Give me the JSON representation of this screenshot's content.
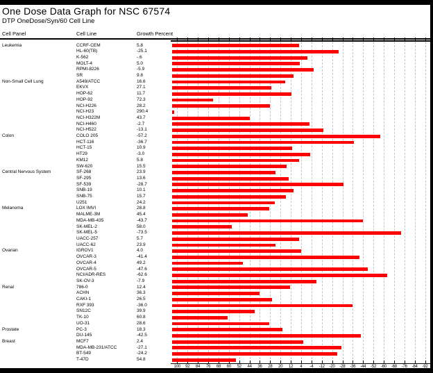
{
  "page": {
    "title": "One Dose Data Graph for NSC 67574",
    "subtitle": "DTP OneDose/Syn/60 Cell Line"
  },
  "table": {
    "columns": {
      "panel": "Cell Panel",
      "cell_line": "Cell Line",
      "growth": "Growth Percent"
    }
  },
  "colors": {
    "bar": "#ff0000",
    "grid": "#c4c4c4",
    "frame": "#000000",
    "background": "#ffffff"
  },
  "chart_data": {
    "type": "bar",
    "orientation": "horizontal",
    "title": "One Dose Data Graph for NSC 67574",
    "xlabel": "Growth Percent",
    "axis_ticks": [
      100,
      92,
      84,
      76,
      68,
      60,
      52,
      44,
      36,
      28,
      20,
      12,
      4,
      -4,
      -12,
      -20,
      -28,
      -36,
      -44,
      -52,
      -60,
      -68,
      -76,
      -84,
      -92
    ],
    "axis_domain": [
      104,
      -96
    ],
    "grid": "dashed-vertical",
    "bars_start_at": 104,
    "panels": [
      {
        "name": "Leukemia",
        "lines": [
          {
            "cell_line": "CCRF-CEM",
            "growth_percent": "5.8"
          },
          {
            "cell_line": "HL-60(TB)",
            "growth_percent": "-25.1"
          },
          {
            "cell_line": "K-562",
            "growth_percent": "-.6"
          },
          {
            "cell_line": "MOLT-4",
            "growth_percent": "5.0"
          },
          {
            "cell_line": "RPMI-8226",
            "growth_percent": "-5.9"
          },
          {
            "cell_line": "SR",
            "growth_percent": "9.8"
          }
        ]
      },
      {
        "name": "Non-Small Cell Lung",
        "lines": [
          {
            "cell_line": "A549/ATCC",
            "growth_percent": "16.6"
          },
          {
            "cell_line": "EKVX",
            "growth_percent": "27.1"
          },
          {
            "cell_line": "HOP-62",
            "growth_percent": "11.7"
          },
          {
            "cell_line": "HOP-92",
            "growth_percent": "72.3"
          },
          {
            "cell_line": "NCI-H226",
            "growth_percent": "28.2"
          },
          {
            "cell_line": "NCI-H23",
            "growth_percent": "290.4"
          },
          {
            "cell_line": "NCI-H322M",
            "growth_percent": "43.7"
          },
          {
            "cell_line": "NCI-H460",
            "growth_percent": "-2.7"
          },
          {
            "cell_line": "NCI-H522",
            "growth_percent": "-13.1"
          }
        ]
      },
      {
        "name": "Colon",
        "lines": [
          {
            "cell_line": "COLO 205",
            "growth_percent": "-57.2"
          },
          {
            "cell_line": "HCT-116",
            "growth_percent": "-36.7"
          },
          {
            "cell_line": "HCT-15",
            "growth_percent": "10.9"
          },
          {
            "cell_line": "HT29",
            "growth_percent": "-3.0"
          },
          {
            "cell_line": "KM12",
            "growth_percent": "5.8"
          },
          {
            "cell_line": "SW-620",
            "growth_percent": "15.5"
          }
        ]
      },
      {
        "name": "Central Nervous System",
        "lines": [
          {
            "cell_line": "SF-268",
            "growth_percent": "23.9"
          },
          {
            "cell_line": "SF-295",
            "growth_percent": "13.6"
          },
          {
            "cell_line": "SF-539",
            "growth_percent": "-28.7"
          },
          {
            "cell_line": "SNB-19",
            "growth_percent": "10.1"
          },
          {
            "cell_line": "SNB-75",
            "growth_percent": "15.7"
          },
          {
            "cell_line": "U251",
            "growth_percent": "24.2"
          }
        ]
      },
      {
        "name": "Melanoma",
        "lines": [
          {
            "cell_line": "LOX IMVI",
            "growth_percent": "28.8"
          },
          {
            "cell_line": "MALME-3M",
            "growth_percent": "45.4"
          },
          {
            "cell_line": "MDA-MB-435",
            "growth_percent": "-43.7"
          },
          {
            "cell_line": "SK-MEL-2",
            "growth_percent": "58.0"
          },
          {
            "cell_line": "SK-MEL-5",
            "growth_percent": "-73.5"
          },
          {
            "cell_line": "UACC-257",
            "growth_percent": "5.7"
          },
          {
            "cell_line": "UACC-62",
            "growth_percent": "23.9"
          }
        ]
      },
      {
        "name": "Ovarian",
        "lines": [
          {
            "cell_line": "IGROV1",
            "growth_percent": "4.0"
          },
          {
            "cell_line": "OVCAR-3",
            "growth_percent": "-41.4"
          },
          {
            "cell_line": "OVCAR-4",
            "growth_percent": "49.2"
          },
          {
            "cell_line": "OVCAR-5",
            "growth_percent": "-47.6"
          },
          {
            "cell_line": "NCI/ADR-RES",
            "growth_percent": "-62.6"
          },
          {
            "cell_line": "SK-OV-3",
            "growth_percent": "-7.9"
          }
        ]
      },
      {
        "name": "Renal",
        "lines": [
          {
            "cell_line": "786-0",
            "growth_percent": "12.4"
          },
          {
            "cell_line": "ACHN",
            "growth_percent": "36.3"
          },
          {
            "cell_line": "CAKI-1",
            "growth_percent": "26.5"
          },
          {
            "cell_line": "RXF 393",
            "growth_percent": "-36.0"
          },
          {
            "cell_line": "SN12C",
            "growth_percent": "39.9"
          },
          {
            "cell_line": "TK-10",
            "growth_percent": "60.8"
          },
          {
            "cell_line": "UO-31",
            "growth_percent": "28.6"
          }
        ]
      },
      {
        "name": "Prostate",
        "lines": [
          {
            "cell_line": "PC-3",
            "growth_percent": "18.3"
          },
          {
            "cell_line": "DU-145",
            "growth_percent": "-42.5"
          }
        ]
      },
      {
        "name": "Breast",
        "lines": [
          {
            "cell_line": "MCF7",
            "growth_percent": "2.4"
          },
          {
            "cell_line": "MDA-MB-231/ATCC",
            "growth_percent": "-27.1"
          },
          {
            "cell_line": "BT-549",
            "growth_percent": "-24.2"
          },
          {
            "cell_line": "T-47D",
            "growth_percent": "54.8"
          }
        ]
      }
    ]
  }
}
